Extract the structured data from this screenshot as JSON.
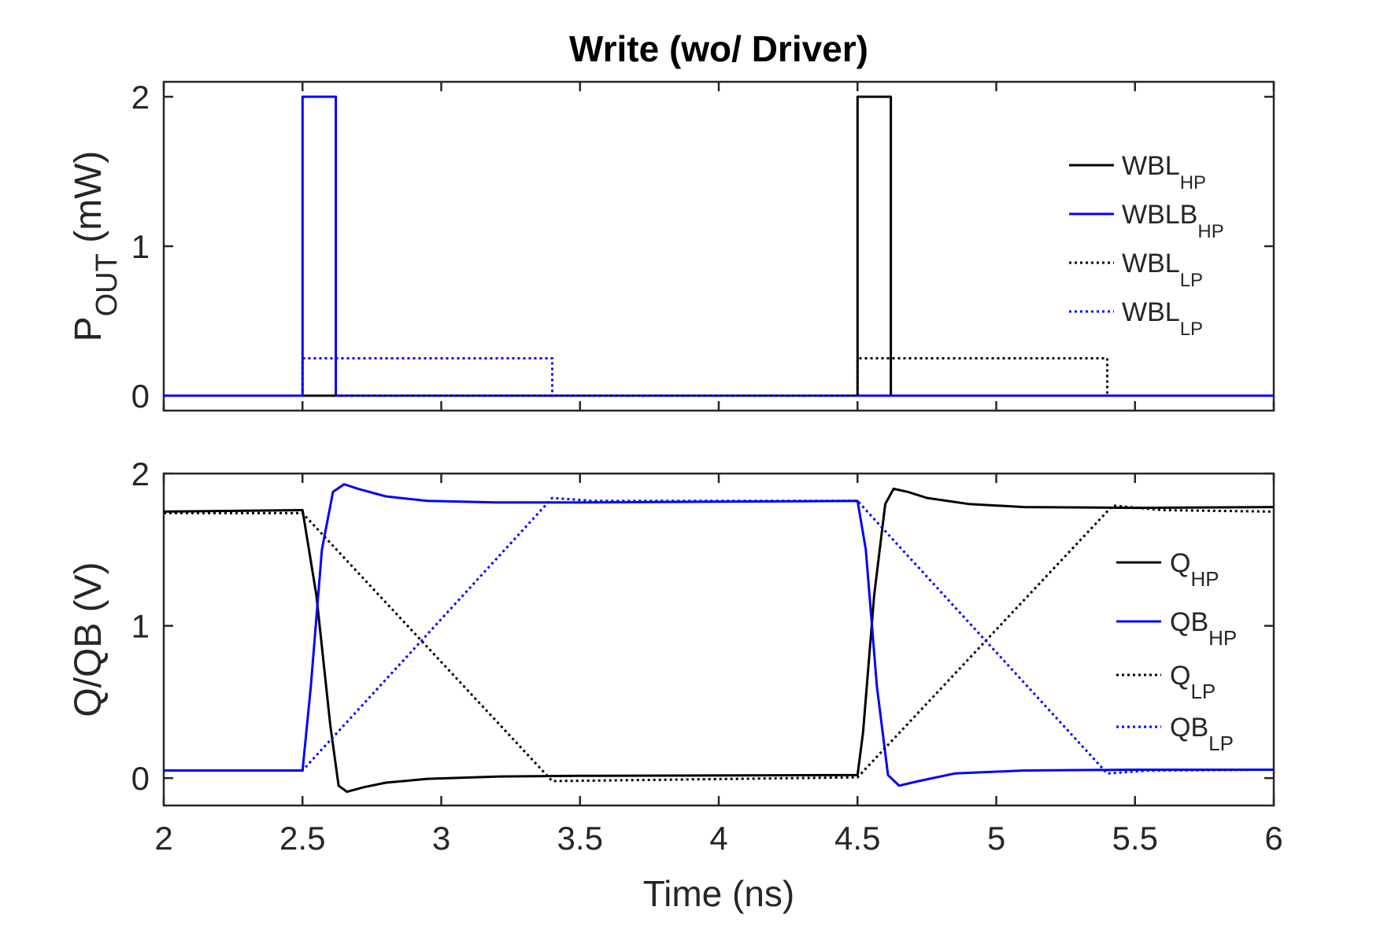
{
  "chart_data": [
    {
      "type": "line",
      "title": "Write (wo/ Driver)",
      "ylabel": {
        "main": "P",
        "sub": "OUT",
        "unit": "(mW)"
      },
      "xlim": [
        2,
        6
      ],
      "ylim": [
        -0.1,
        2.1
      ],
      "yticks": [
        0,
        1,
        2
      ],
      "ytick_labels": [
        "0",
        "1",
        "2"
      ],
      "x_ticks": [
        2,
        2.5,
        3,
        3.5,
        4,
        4.5,
        5,
        5.5,
        6
      ],
      "legend_position": "right",
      "series": [
        {
          "name": "WBL",
          "sub": "HP",
          "color": "#000000",
          "dash": "solid",
          "points": [
            [
              2,
              0
            ],
            [
              4.5,
              0
            ],
            [
              4.5,
              2
            ],
            [
              4.62,
              2
            ],
            [
              4.62,
              0
            ],
            [
              6,
              0
            ]
          ]
        },
        {
          "name": "WBLB",
          "sub": "HP",
          "color": "#0000ff",
          "dash": "solid",
          "points": [
            [
              2,
              0
            ],
            [
              2.5,
              0
            ],
            [
              2.5,
              2
            ],
            [
              2.62,
              2
            ],
            [
              2.62,
              0
            ],
            [
              6,
              0
            ]
          ]
        },
        {
          "name": "WBL",
          "sub": "LP",
          "color": "#000000",
          "dash": "dotted",
          "points": [
            [
              2,
              0
            ],
            [
              4.5,
              0
            ],
            [
              4.5,
              0.25
            ],
            [
              5.4,
              0.25
            ],
            [
              5.4,
              0
            ],
            [
              6,
              0
            ]
          ]
        },
        {
          "name": "WBL",
          "sub": "LP",
          "color": "#0000ff",
          "dash": "dotted",
          "points": [
            [
              2,
              0
            ],
            [
              2.5,
              0
            ],
            [
              2.5,
              0.25
            ],
            [
              3.4,
              0.25
            ],
            [
              3.4,
              0
            ],
            [
              6,
              0
            ]
          ]
        }
      ]
    },
    {
      "type": "line",
      "ylabel": {
        "main": "Q/QB (V)"
      },
      "xlabel": "Time (ns)",
      "xlim": [
        2,
        6
      ],
      "ylim": [
        -0.18,
        2.0
      ],
      "yticks": [
        0,
        1,
        2
      ],
      "ytick_labels": [
        "0",
        "1",
        "2"
      ],
      "xticks": [
        2,
        2.5,
        3,
        3.5,
        4,
        4.5,
        5,
        5.5,
        6
      ],
      "xtick_labels": [
        "2",
        "2.5",
        "3",
        "3.5",
        "4",
        "4.5",
        "5",
        "5.5",
        "6"
      ],
      "legend_position": "right",
      "series": [
        {
          "name": "Q",
          "sub": "HP",
          "color": "#000000",
          "dash": "solid",
          "points": [
            [
              2,
              1.75
            ],
            [
              2.5,
              1.76
            ],
            [
              2.55,
              1.2
            ],
            [
              2.6,
              0.35
            ],
            [
              2.63,
              -0.05
            ],
            [
              2.66,
              -0.09
            ],
            [
              2.72,
              -0.06
            ],
            [
              2.8,
              -0.03
            ],
            [
              2.95,
              -0.005
            ],
            [
              3.2,
              0.01
            ],
            [
              3.5,
              0.015
            ],
            [
              4.5,
              0.02
            ],
            [
              4.52,
              0.3
            ],
            [
              4.56,
              1.2
            ],
            [
              4.6,
              1.8
            ],
            [
              4.63,
              1.9
            ],
            [
              4.68,
              1.88
            ],
            [
              4.75,
              1.84
            ],
            [
              4.9,
              1.8
            ],
            [
              5.1,
              1.78
            ],
            [
              5.5,
              1.775
            ],
            [
              6,
              1.78
            ]
          ]
        },
        {
          "name": "QB",
          "sub": "HP",
          "color": "#0000ff",
          "dash": "solid",
          "points": [
            [
              2,
              0.05
            ],
            [
              2.5,
              0.05
            ],
            [
              2.53,
              0.6
            ],
            [
              2.57,
              1.5
            ],
            [
              2.61,
              1.88
            ],
            [
              2.65,
              1.93
            ],
            [
              2.7,
              1.9
            ],
            [
              2.8,
              1.85
            ],
            [
              2.95,
              1.82
            ],
            [
              3.2,
              1.81
            ],
            [
              3.5,
              1.81
            ],
            [
              4.5,
              1.82
            ],
            [
              4.53,
              1.5
            ],
            [
              4.57,
              0.6
            ],
            [
              4.61,
              0.02
            ],
            [
              4.65,
              -0.05
            ],
            [
              4.72,
              -0.02
            ],
            [
              4.85,
              0.03
            ],
            [
              5.1,
              0.05
            ],
            [
              5.5,
              0.055
            ],
            [
              6,
              0.055
            ]
          ]
        },
        {
          "name": "Q",
          "sub": "LP",
          "color": "#000000",
          "dash": "dotted",
          "points": [
            [
              2,
              1.74
            ],
            [
              2.5,
              1.74
            ],
            [
              3.4,
              -0.02
            ],
            [
              4.5,
              0.005
            ],
            [
              5.42,
              1.79
            ],
            [
              5.6,
              1.76
            ],
            [
              6,
              1.75
            ]
          ]
        },
        {
          "name": "QB",
          "sub": "LP",
          "color": "#0000ff",
          "dash": "dotted",
          "points": [
            [
              2,
              0.05
            ],
            [
              2.5,
              0.05
            ],
            [
              3.4,
              1.84
            ],
            [
              3.55,
              1.82
            ],
            [
              4.5,
              1.82
            ],
            [
              5.4,
              0.03
            ],
            [
              5.55,
              0.05
            ],
            [
              6,
              0.055
            ]
          ]
        }
      ]
    }
  ]
}
